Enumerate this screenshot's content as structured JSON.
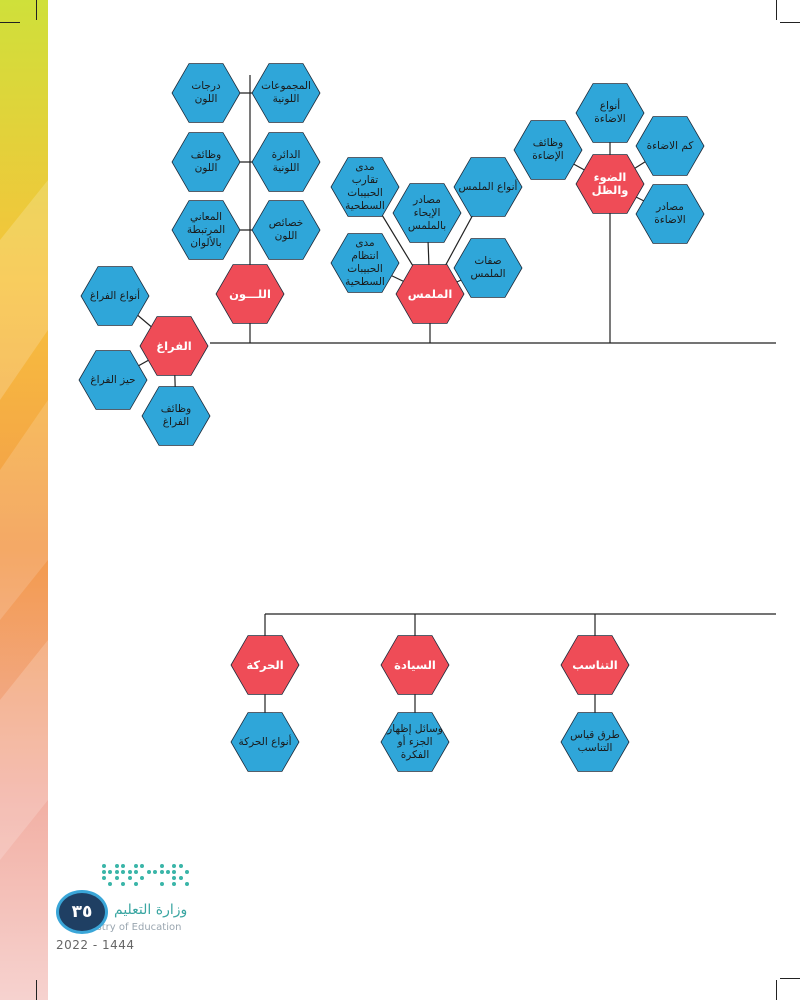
{
  "colors": {
    "blue_hex": "#2fa6d9",
    "red_hex": "#ef4c57",
    "hex_stroke": "#1d2a3a",
    "line": "#222222",
    "stripe_top": "#cfe03a",
    "stripe_bottom": "#f2b6b4"
  },
  "diagram_top": {
    "nodes": [
      {
        "id": "space",
        "label": "الفراغ",
        "kind": "main"
      },
      {
        "id": "space-types",
        "label": "أنواع الفراغ",
        "kind": "sub"
      },
      {
        "id": "space-size",
        "label": "حيز الفراغ",
        "kind": "sub"
      },
      {
        "id": "space-functions",
        "label": "وظائف\nالفراغ",
        "kind": "sub"
      },
      {
        "id": "color",
        "label": "اللـــون",
        "kind": "main"
      },
      {
        "id": "color-degrees",
        "label": "درجات\nاللون",
        "kind": "sub"
      },
      {
        "id": "color-groups",
        "label": "المجموعات\nاللونية",
        "kind": "sub"
      },
      {
        "id": "color-functions",
        "label": "وظائف\nاللون",
        "kind": "sub"
      },
      {
        "id": "color-wheel",
        "label": "الدائرة\nاللونية",
        "kind": "sub"
      },
      {
        "id": "color-meanings",
        "label": "المعاني\nالمرتبطة\nبالألوان",
        "kind": "sub"
      },
      {
        "id": "color-properties",
        "label": "خصائص\nاللون",
        "kind": "sub"
      },
      {
        "id": "texture",
        "label": "الملمس",
        "kind": "main"
      },
      {
        "id": "texture-granule-proximity",
        "label": "مدى\nتقارب\nالحبيبات\nالسطحية",
        "kind": "sub"
      },
      {
        "id": "texture-suggestion-sources",
        "label": "مصادر\nالإيحاء\nبالملمس",
        "kind": "sub"
      },
      {
        "id": "texture-types",
        "label": "أنواع الملمس",
        "kind": "sub"
      },
      {
        "id": "texture-granule-regularity",
        "label": "مدى\nانتظام\nالحبيبات\nالسطحية",
        "kind": "sub"
      },
      {
        "id": "texture-features",
        "label": "صفات\nالملمس",
        "kind": "sub"
      },
      {
        "id": "light",
        "label": "الضوء\nوالظل",
        "kind": "main"
      },
      {
        "id": "light-types",
        "label": "أنواع\nالاضاءة",
        "kind": "sub"
      },
      {
        "id": "light-functions",
        "label": "وظائف\nالإضاءة",
        "kind": "sub"
      },
      {
        "id": "light-amount",
        "label": "كم الاضاءة",
        "kind": "sub"
      },
      {
        "id": "light-sources",
        "label": "مصادر\nالاضاءة",
        "kind": "sub"
      }
    ]
  },
  "diagram_bottom": {
    "nodes": [
      {
        "id": "movement",
        "label": "الحركة",
        "kind": "main"
      },
      {
        "id": "movement-types",
        "label": "أنواع الحركة",
        "kind": "sub"
      },
      {
        "id": "dominance",
        "label": "السيادة",
        "kind": "main"
      },
      {
        "id": "dominance-means",
        "label": "وسائل إظهار\nالجزء أو\nالفكرة",
        "kind": "sub"
      },
      {
        "id": "proportion",
        "label": "التناسب",
        "kind": "main"
      },
      {
        "id": "proportion-measure",
        "label": "طرق قياس\nالتناسب",
        "kind": "sub"
      }
    ]
  },
  "footer": {
    "page_number": "٣٥",
    "ministry_ar": "وزارة التعليم",
    "ministry_en": "Ministry of Education",
    "year": "2022 - 1444"
  }
}
